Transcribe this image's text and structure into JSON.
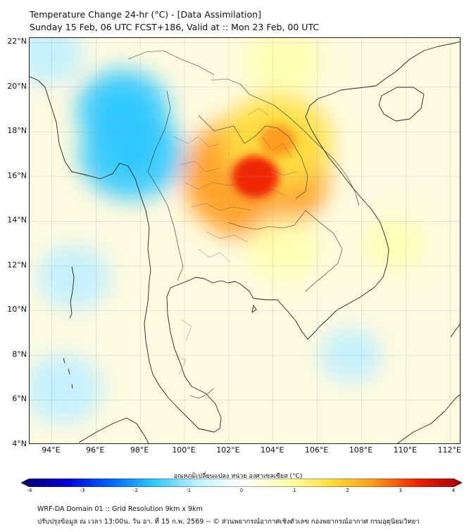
{
  "header": {
    "title_line1": "Temperature Change 24-hr (°C) - [Data Assimilation]",
    "title_line2": "Sunday 15 Feb, 06 UTC FCST+186, Valid at :: Mon 23 Feb, 00 UTC"
  },
  "map": {
    "lon_range": [
      93,
      112.5
    ],
    "lat_range": [
      4,
      22.2
    ],
    "lat_labels": [
      "22°N",
      "20°N",
      "18°N",
      "16°N",
      "14°N",
      "12°N",
      "10°N",
      "8°N",
      "6°N",
      "4°N"
    ],
    "lon_labels": [
      "94°E",
      "96°E",
      "98°E",
      "100°E",
      "102°E",
      "104°E",
      "106°E",
      "108°E",
      "110°E",
      "112°E"
    ],
    "grid": true,
    "field": {
      "variable": "24-hr temperature change",
      "anomalies": [
        {
          "name": "hot-core-northeast-thailand",
          "lon": 103.2,
          "lat": 16.0,
          "value": 3.4
        },
        {
          "name": "warm-laos-center",
          "lon": 104.2,
          "lat": 17.6,
          "value": 2.2
        },
        {
          "name": "warm-north-laos",
          "lon": 104.5,
          "lat": 21.2,
          "value": 1.1
        },
        {
          "name": "cool-myanmar-core",
          "lon": 97.6,
          "lat": 17.0,
          "value": -2.0
        },
        {
          "name": "cool-myanmar-north",
          "lon": 97.2,
          "lat": 19.0,
          "value": -1.6
        },
        {
          "name": "cool-andaman-sea",
          "lon": 95.0,
          "lat": 11.5,
          "value": -1.0
        },
        {
          "name": "cool-indian-ocean-south",
          "lon": 94.5,
          "lat": 6.5,
          "value": -1.2
        },
        {
          "name": "cool-bay-of-bengal-north",
          "lon": 93.8,
          "lat": 21.5,
          "value": -0.9
        },
        {
          "name": "cool-gulf-east",
          "lon": 107.5,
          "lat": 8.0,
          "value": -0.6
        },
        {
          "name": "warm-cambodia",
          "lon": 104.5,
          "lat": 12.8,
          "value": 1.0
        },
        {
          "name": "warm-south-china-sea",
          "lon": 109.5,
          "lat": 13.0,
          "value": 0.5
        }
      ]
    }
  },
  "colorbar": {
    "title": "อุณหภูมิเปลี่ยนแปลง หน่วย องศาเซลเซียส (°C)",
    "min": -4,
    "max": 4,
    "tick_labels": [
      "-4",
      "-3",
      "-2",
      "-1",
      "0",
      "1",
      "2",
      "3",
      "4"
    ],
    "colors": [
      "#00006e",
      "#0000d0",
      "#0060ff",
      "#2ec8ff",
      "#bff0ff",
      "#ffffff",
      "#ffffb0",
      "#ffe040",
      "#ff9a1a",
      "#f02000",
      "#a00000"
    ]
  },
  "footer": {
    "line1": "WRF-DA Domain 01 :: Grid Resolution 9km x 9km",
    "line2": "ปรับปรุงข้อมูล ณ เวลา 13:00น. วัน อา. ที่ 15 ก.พ. 2569 -- © ส่วนพยากรณ์อากาศเชิงตัวเลข กองพยากรณ์อากาศ กรมอุตุนิยมวิทยา"
  }
}
